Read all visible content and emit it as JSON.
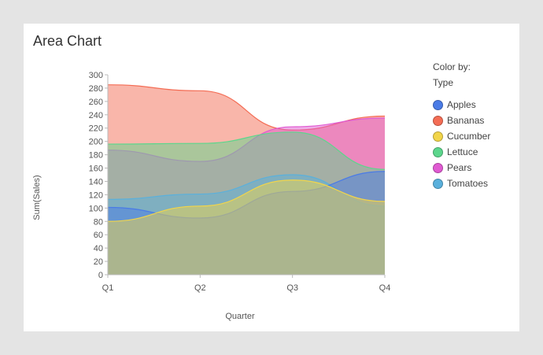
{
  "title": "Area Chart",
  "legend": {
    "heading_line1": "Color by:",
    "heading_line2": "Type"
  },
  "chart_data": {
    "type": "area",
    "title": "Area Chart",
    "xlabel": "Quarter",
    "ylabel": "Sum(Sales)",
    "categories": [
      "Q1",
      "Q2",
      "Q3",
      "Q4"
    ],
    "ylim": [
      0,
      300
    ],
    "yticks": [
      0,
      20,
      40,
      60,
      80,
      100,
      120,
      140,
      160,
      180,
      200,
      220,
      240,
      260,
      280,
      300
    ],
    "grid": false,
    "legend_position": "right",
    "series": [
      {
        "name": "Bananas",
        "color": "#f46d55",
        "values": [
          285,
          276,
          217,
          238
        ]
      },
      {
        "name": "Pears",
        "color": "#e05ad2",
        "values": [
          187,
          170,
          222,
          235
        ]
      },
      {
        "name": "Lettuce",
        "color": "#5cd68c",
        "values": [
          196,
          197,
          214,
          158
        ]
      },
      {
        "name": "Tomatoes",
        "color": "#5ab0dc",
        "values": [
          113,
          121,
          150,
          103
        ]
      },
      {
        "name": "Apples",
        "color": "#4a7be6",
        "values": [
          101,
          85,
          125,
          155
        ]
      },
      {
        "name": "Cucumber",
        "color": "#f2d54a",
        "values": [
          80,
          103,
          142,
          110
        ]
      }
    ],
    "legend_order": [
      "Apples",
      "Bananas",
      "Cucumber",
      "Lettuce",
      "Pears",
      "Tomatoes"
    ]
  }
}
